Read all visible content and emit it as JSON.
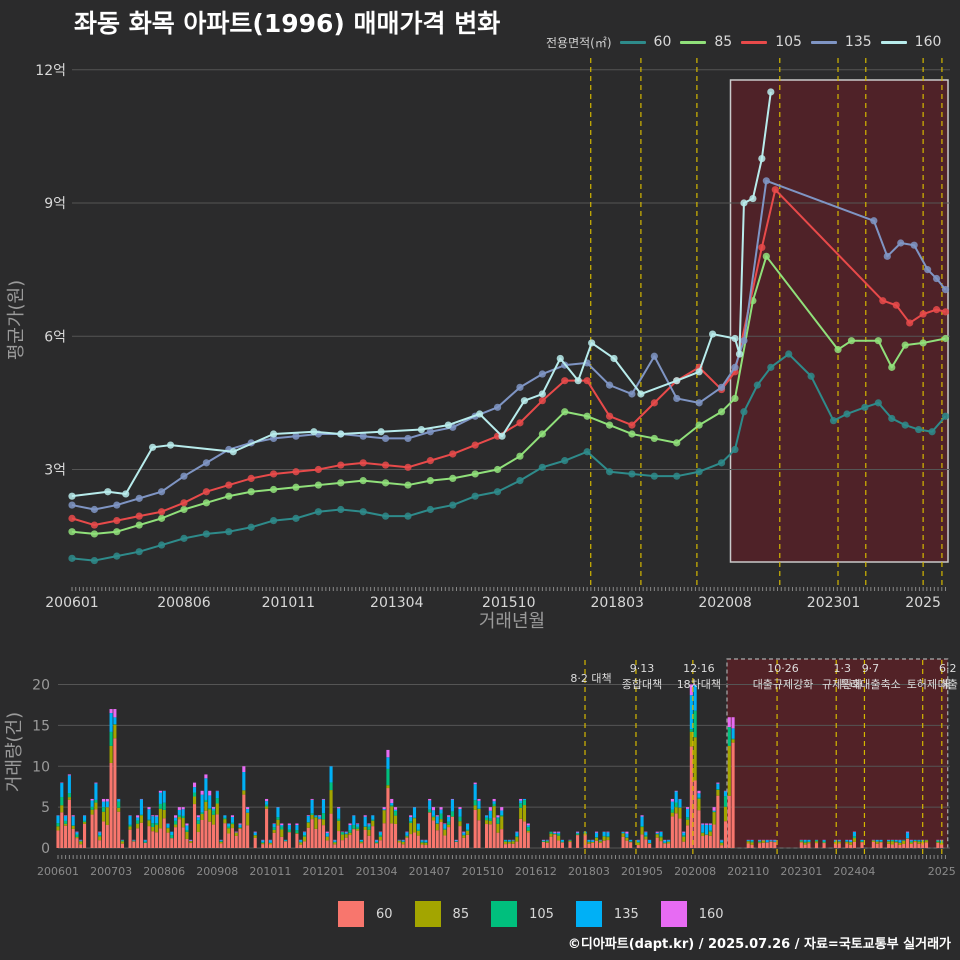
{
  "title": "좌동 화목 아파트(1996) 매매가격 변화",
  "footer": "©디아파트(dapt.kr) / 2025.07.26 / 자료=국토교통부 실거래가",
  "colors": {
    "background": "#2b2b2c",
    "grid": "#555555",
    "policy_line": "#d4b800",
    "highlight_fill": "#5c2027",
    "highlight_border": "#ffffff",
    "vol_60": "#f8766d",
    "vol_85": "#a3a500",
    "vol_105": "#00bf7d",
    "vol_135": "#00b0f6",
    "vol_160": "#e76bf3"
  },
  "chart_data": [
    {
      "type": "line",
      "xlabel": "거래년월",
      "ylabel": "평균가(원)",
      "legend_title": "전용면적(㎡)",
      "legend_position": "top-right",
      "grid": true,
      "x_range": [
        2006.0,
        2025.6
      ],
      "ylim": [
        0.4,
        12.4
      ],
      "y_unit": "억",
      "y_ticks": [
        3,
        6,
        9,
        12
      ],
      "y_tick_labels": [
        "3억",
        "6억",
        "9억",
        "12억"
      ],
      "x_ticks": [
        2006.0,
        2008.5,
        2010.83,
        2013.25,
        2015.75,
        2018.17,
        2020.58,
        2023.0,
        2025.0
      ],
      "x_tick_labels": [
        "200601",
        "200806",
        "201011",
        "201304",
        "201510",
        "201803",
        "202008",
        "202301",
        "2025"
      ],
      "policy_lines": [
        2017.58,
        2018.7,
        2019.95,
        2021.8,
        2023.1,
        2023.72,
        2025.0,
        2025.42
      ],
      "highlight_region": [
        2020.7,
        2025.6
      ],
      "series": [
        {
          "name": "60",
          "color": "#2e8b8b",
          "x": [
            2006.0,
            2006.5,
            2007.0,
            2007.5,
            2008.0,
            2008.5,
            2009.0,
            2009.5,
            2010.0,
            2010.5,
            2011.0,
            2011.5,
            2012.0,
            2012.5,
            2013.0,
            2013.5,
            2014.0,
            2014.5,
            2015.0,
            2015.5,
            2016.0,
            2016.5,
            2017.0,
            2017.5,
            2018.0,
            2018.5,
            2019.0,
            2019.5,
            2020.0,
            2020.5,
            2020.8,
            2021.0,
            2021.3,
            2021.6,
            2022.0,
            2022.5,
            2023.0,
            2023.3,
            2023.7,
            2024.0,
            2024.3,
            2024.6,
            2024.9,
            2025.2,
            2025.5
          ],
          "values": [
            1.0,
            0.95,
            1.05,
            1.15,
            1.3,
            1.45,
            1.55,
            1.6,
            1.7,
            1.85,
            1.9,
            2.05,
            2.1,
            2.05,
            1.95,
            1.95,
            2.1,
            2.2,
            2.4,
            2.5,
            2.75,
            3.05,
            3.2,
            3.4,
            2.95,
            2.9,
            2.85,
            2.85,
            2.95,
            3.15,
            3.45,
            4.3,
            4.9,
            5.3,
            5.6,
            5.1,
            4.1,
            4.25,
            4.4,
            4.5,
            4.15,
            4.0,
            3.9,
            3.85,
            4.2
          ]
        },
        {
          "name": "85",
          "color": "#90e07a",
          "x": [
            2006.0,
            2006.5,
            2007.0,
            2007.5,
            2008.0,
            2008.5,
            2009.0,
            2009.5,
            2010.0,
            2010.5,
            2011.0,
            2011.5,
            2012.0,
            2012.5,
            2013.0,
            2013.5,
            2014.0,
            2014.5,
            2015.0,
            2015.5,
            2016.0,
            2016.5,
            2017.0,
            2017.5,
            2018.0,
            2018.5,
            2019.0,
            2019.5,
            2020.0,
            2020.5,
            2020.8,
            2021.2,
            2021.5,
            2023.1,
            2023.4,
            2024.0,
            2024.3,
            2024.6,
            2025.0,
            2025.5
          ],
          "values": [
            1.6,
            1.55,
            1.6,
            1.75,
            1.9,
            2.1,
            2.25,
            2.4,
            2.5,
            2.55,
            2.6,
            2.65,
            2.7,
            2.75,
            2.7,
            2.65,
            2.75,
            2.8,
            2.9,
            3.0,
            3.3,
            3.8,
            4.3,
            4.2,
            4.0,
            3.8,
            3.7,
            3.6,
            4.0,
            4.3,
            4.6,
            6.8,
            7.8,
            5.7,
            5.9,
            5.9,
            5.3,
            5.8,
            5.85,
            5.95
          ]
        },
        {
          "name": "105",
          "color": "#e84a4a",
          "x": [
            2006.0,
            2006.5,
            2007.0,
            2007.5,
            2008.0,
            2008.5,
            2009.0,
            2009.5,
            2010.0,
            2010.5,
            2011.0,
            2011.5,
            2012.0,
            2012.5,
            2013.0,
            2013.5,
            2014.0,
            2014.5,
            2015.0,
            2015.5,
            2016.0,
            2016.5,
            2017.0,
            2017.5,
            2018.0,
            2018.5,
            2019.0,
            2019.5,
            2020.0,
            2020.5,
            2020.8,
            2021.4,
            2021.7,
            2024.1,
            2024.4,
            2024.7,
            2025.0,
            2025.3,
            2025.5
          ],
          "values": [
            1.9,
            1.75,
            1.85,
            1.95,
            2.05,
            2.25,
            2.5,
            2.65,
            2.8,
            2.9,
            2.95,
            3.0,
            3.1,
            3.15,
            3.1,
            3.05,
            3.2,
            3.35,
            3.55,
            3.75,
            4.05,
            4.55,
            5.0,
            5.0,
            4.2,
            4.0,
            4.5,
            5.0,
            5.3,
            4.8,
            5.2,
            8.0,
            9.3,
            6.8,
            6.7,
            6.3,
            6.5,
            6.6,
            6.55
          ]
        },
        {
          "name": "135",
          "color": "#7f95c4",
          "x": [
            2006.0,
            2006.5,
            2007.0,
            2007.5,
            2008.0,
            2008.5,
            2009.0,
            2009.5,
            2010.0,
            2010.5,
            2011.0,
            2011.5,
            2012.0,
            2012.5,
            2013.0,
            2013.5,
            2014.0,
            2014.5,
            2015.0,
            2015.5,
            2016.0,
            2016.5,
            2017.0,
            2017.5,
            2018.0,
            2018.5,
            2019.0,
            2019.5,
            2020.0,
            2020.5,
            2020.8,
            2021.0,
            2021.5,
            2023.9,
            2024.2,
            2024.5,
            2024.8,
            2025.1,
            2025.3,
            2025.5
          ],
          "values": [
            2.2,
            2.1,
            2.2,
            2.35,
            2.5,
            2.85,
            3.15,
            3.45,
            3.6,
            3.7,
            3.75,
            3.8,
            3.8,
            3.75,
            3.7,
            3.7,
            3.85,
            3.95,
            4.2,
            4.4,
            4.85,
            5.15,
            5.35,
            5.4,
            4.9,
            4.7,
            5.55,
            4.6,
            4.5,
            4.85,
            5.3,
            5.9,
            9.5,
            8.6,
            7.8,
            8.1,
            8.05,
            7.5,
            7.3,
            7.05
          ]
        },
        {
          "name": "160",
          "color": "#b8ecec",
          "x": [
            2006.0,
            2006.8,
            2007.2,
            2007.8,
            2008.2,
            2009.6,
            2010.5,
            2011.4,
            2012.0,
            2012.9,
            2013.8,
            2014.4,
            2015.1,
            2015.6,
            2016.1,
            2016.5,
            2016.9,
            2017.3,
            2017.6,
            2018.1,
            2018.7,
            2019.5,
            2020.0,
            2020.3,
            2020.8,
            2020.9,
            2021.0,
            2021.2,
            2021.4,
            2021.6
          ],
          "values": [
            2.4,
            2.5,
            2.45,
            3.5,
            3.55,
            3.4,
            3.8,
            3.85,
            3.8,
            3.85,
            3.9,
            4.0,
            4.25,
            3.75,
            4.55,
            4.7,
            5.5,
            5.0,
            5.85,
            5.5,
            4.7,
            5.0,
            5.2,
            6.05,
            5.95,
            5.6,
            9.0,
            9.1,
            10.0,
            11.5
          ]
        }
      ]
    },
    {
      "type": "bar",
      "stacked": true,
      "xlabel": "",
      "ylabel": "거래량(건)",
      "ylim": [
        0,
        23
      ],
      "y_ticks": [
        0,
        5,
        10,
        15,
        20
      ],
      "x_tick_labels": [
        "200601",
        "200703",
        "200806",
        "200908",
        "201011",
        "201201",
        "201304",
        "201407",
        "201510",
        "201612",
        "201803",
        "201905",
        "202008",
        "202110",
        "202301",
        "202404",
        "2025"
      ],
      "highlight_region": [
        2020.7,
        2025.6
      ],
      "categories_note": "monthly",
      "series_names": [
        "60",
        "85",
        "105",
        "135",
        "160"
      ],
      "annotations": [
        {
          "x": 2017.58,
          "lines": [
            "8·2 대책"
          ]
        },
        {
          "x": 2018.7,
          "lines": [
            "9·13",
            "종합대책"
          ]
        },
        {
          "x": 2019.95,
          "lines": [
            "12·16",
            "18차대책"
          ]
        },
        {
          "x": 2021.8,
          "lines": [
            "10·26",
            "대출규제강화"
          ]
        },
        {
          "x": 2023.1,
          "lines": [
            "1·3",
            "규제완화"
          ]
        },
        {
          "x": 2023.72,
          "lines": [
            "9·7",
            "특례대출축소"
          ]
        },
        {
          "x": 2025.0,
          "lines": [
            "",
            "토허제 해"
          ]
        },
        {
          "x": 2025.42,
          "lines": [
            "6·2",
            "대출"
          ]
        }
      ]
    }
  ]
}
